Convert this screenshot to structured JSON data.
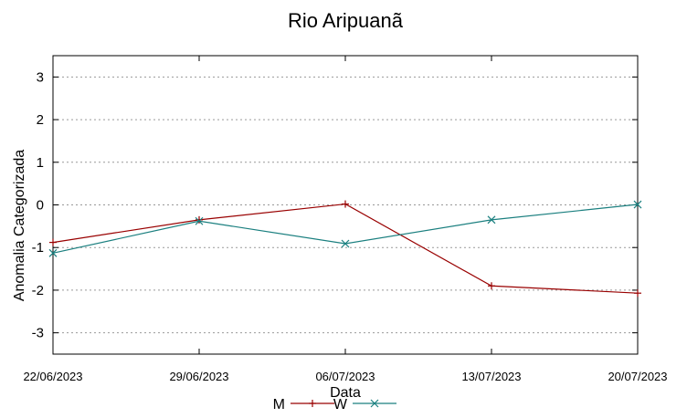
{
  "chart_data": {
    "type": "line",
    "title": "Rio Aripuanã",
    "xlabel": "Data",
    "ylabel": "Anomalia Categorizada",
    "categories": [
      "22/06/2023",
      "29/06/2023",
      "06/07/2023",
      "13/07/2023",
      "20/07/2023"
    ],
    "yticks": [
      "3",
      "2",
      "1",
      "0",
      "-1",
      "-2",
      "-3"
    ],
    "ylim": [
      -3.5,
      3.5
    ],
    "grid": true,
    "legend_position": "bottom",
    "series": [
      {
        "name": "M",
        "color": "#990000",
        "marker": "plus",
        "values": [
          -0.88,
          -0.35,
          0.02,
          -1.9,
          -2.07
        ]
      },
      {
        "name": "W",
        "color": "#1a7f7f",
        "marker": "x",
        "values": [
          -1.13,
          -0.38,
          -0.91,
          -0.35,
          0.01
        ]
      }
    ]
  }
}
